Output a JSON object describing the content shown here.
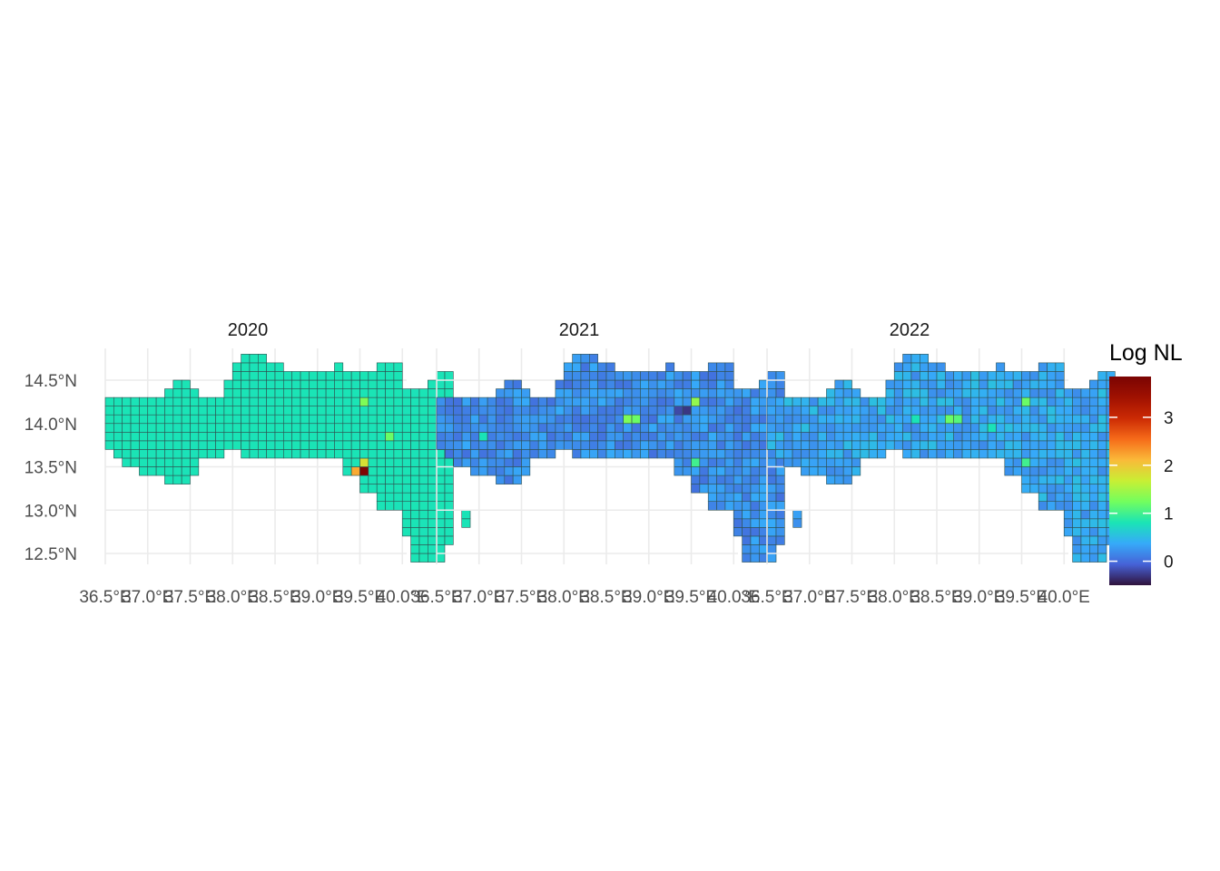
{
  "chart_data": {
    "type": "heatmap",
    "title": "",
    "panels": [
      {
        "title": "2020",
        "base_value": 0.8,
        "hotspots": [
          {
            "lon": 39.45,
            "lat": 13.45,
            "value": 2.2
          },
          {
            "lon": 39.55,
            "lat": 13.45,
            "value": 3.8
          },
          {
            "lon": 39.55,
            "lat": 13.55,
            "value": 1.8
          },
          {
            "lon": 39.55,
            "lat": 14.25,
            "value": 1.3
          },
          {
            "lon": 39.85,
            "lat": 13.85,
            "value": 1.2
          },
          {
            "lon": 39.65,
            "lat": 12.75,
            "value": 1.1
          },
          {
            "lon": 39.85,
            "lat": 12.75,
            "value": 1.1
          },
          {
            "lon": 39.65,
            "lat": 12.45,
            "value": 1.2
          }
        ]
      },
      {
        "title": "2021",
        "base_value": 0.2,
        "hotspots": [
          {
            "lon": 38.75,
            "lat": 14.05,
            "value": 1.3
          },
          {
            "lon": 38.85,
            "lat": 14.05,
            "value": 1.2
          },
          {
            "lon": 39.55,
            "lat": 14.25,
            "value": 1.4
          },
          {
            "lon": 39.45,
            "lat": 14.15,
            "value": -0.3
          },
          {
            "lon": 39.35,
            "lat": 14.15,
            "value": -0.2
          },
          {
            "lon": 39.55,
            "lat": 13.55,
            "value": 1.0
          },
          {
            "lon": 39.65,
            "lat": 12.75,
            "value": 0.9
          },
          {
            "lon": 37.05,
            "lat": 13.85,
            "value": 0.8
          },
          {
            "lon": 39.15,
            "lat": 13.35,
            "value": -0.2
          }
        ]
      },
      {
        "title": "2022",
        "base_value": 0.35,
        "hotspots": [
          {
            "lon": 38.65,
            "lat": 14.05,
            "value": 1.2
          },
          {
            "lon": 38.75,
            "lat": 14.05,
            "value": 1.1
          },
          {
            "lon": 39.55,
            "lat": 14.25,
            "value": 1.2
          },
          {
            "lon": 39.55,
            "lat": 13.55,
            "value": 1.0
          },
          {
            "lon": 39.15,
            "lat": 13.95,
            "value": 0.8
          },
          {
            "lon": 38.25,
            "lat": 14.05,
            "value": 0.8
          }
        ]
      }
    ],
    "y_ticks": [
      {
        "lat": 14.5,
        "label": "14.5°N"
      },
      {
        "lat": 14.0,
        "label": "14.0°N"
      },
      {
        "lat": 13.5,
        "label": "13.5°N"
      },
      {
        "lat": 13.0,
        "label": "13.0°N"
      },
      {
        "lat": 12.5,
        "label": "12.5°N"
      }
    ],
    "x_ticks": [
      {
        "lon": 36.5,
        "label": "36.5°E"
      },
      {
        "lon": 37.0,
        "label": "37.0°E"
      },
      {
        "lon": 37.5,
        "label": "37.5°E"
      },
      {
        "lon": 38.0,
        "label": "38.0°E"
      },
      {
        "lon": 38.5,
        "label": "38.5°E"
      },
      {
        "lon": 39.0,
        "label": "39.0°E"
      },
      {
        "lon": 39.5,
        "label": "39.5°E"
      },
      {
        "lon": 40.0,
        "label": "40.0°E"
      }
    ],
    "xlim": [
      36.5,
      40.0
    ],
    "ylim": [
      12.4,
      14.75
    ],
    "legend": {
      "title": "Log NL",
      "position": "right",
      "range": [
        -0.5,
        3.85
      ],
      "ticks": [
        0,
        1,
        2,
        3
      ],
      "colormap": "turbo"
    },
    "grid": true
  }
}
